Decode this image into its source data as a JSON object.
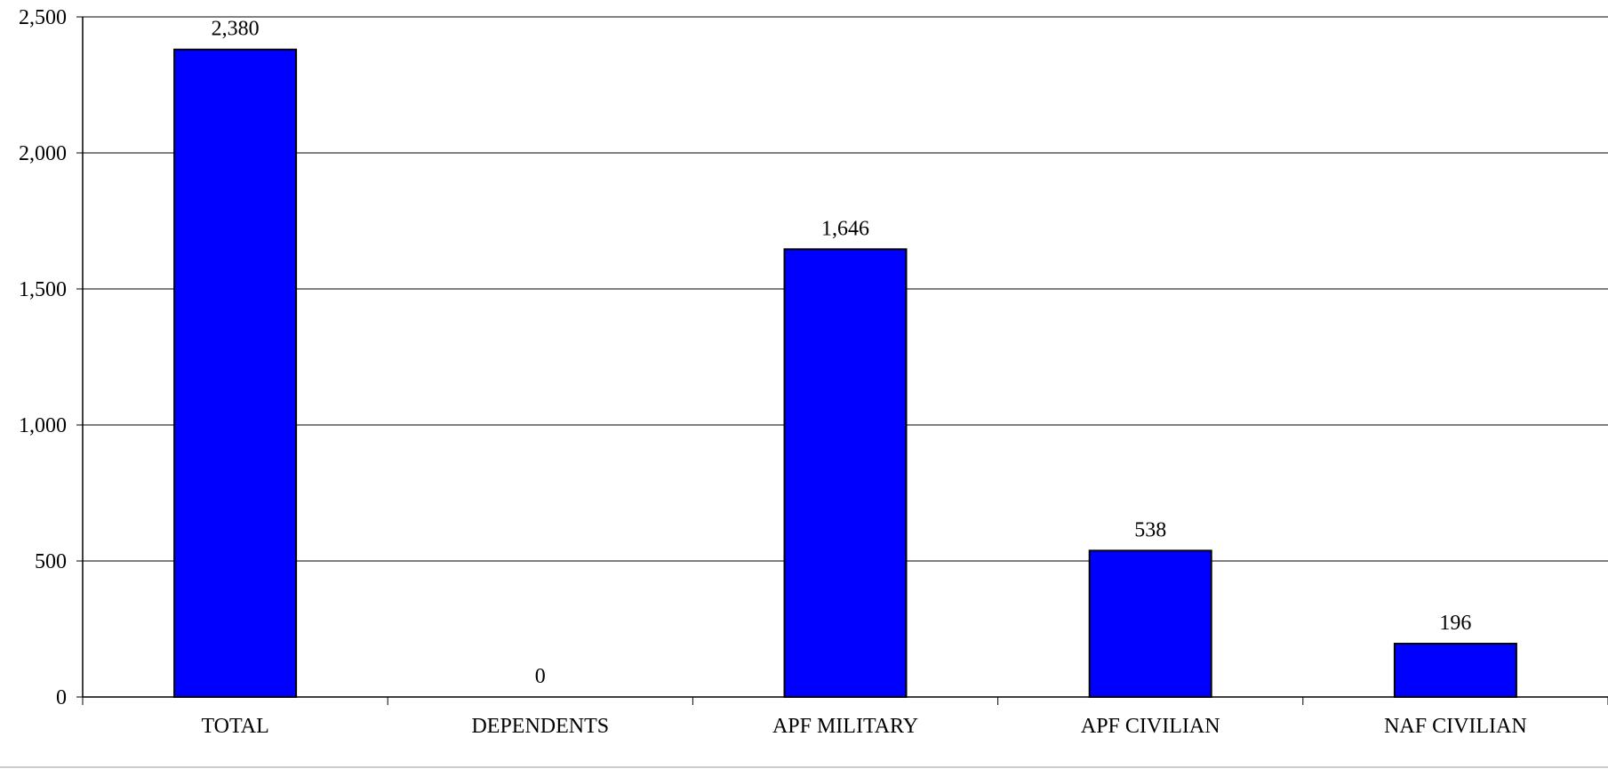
{
  "chart_data": {
    "type": "bar",
    "title": "",
    "xlabel": "",
    "ylabel": "",
    "categories": [
      "TOTAL",
      "DEPENDENTS",
      "APF MILITARY",
      "APF CIVILIAN",
      "NAF CIVILIAN"
    ],
    "values": [
      2380,
      0,
      1646,
      538,
      196
    ],
    "value_labels": [
      "2,380",
      "0",
      "1,646",
      "538",
      "196"
    ],
    "ylim": [
      0,
      2500
    ],
    "yticks": [
      0,
      500,
      1000,
      1500,
      2000,
      2500
    ],
    "ytick_labels": [
      "0",
      "500",
      "1,000",
      "1,500",
      "2,000",
      "2,500"
    ],
    "grid": true,
    "legend": "none",
    "colors": {
      "bar_fill": "#0000FF",
      "bar_stroke": "#000000",
      "axis": "#000000",
      "gridline": "#000000",
      "background": "#FFFFFF"
    }
  }
}
